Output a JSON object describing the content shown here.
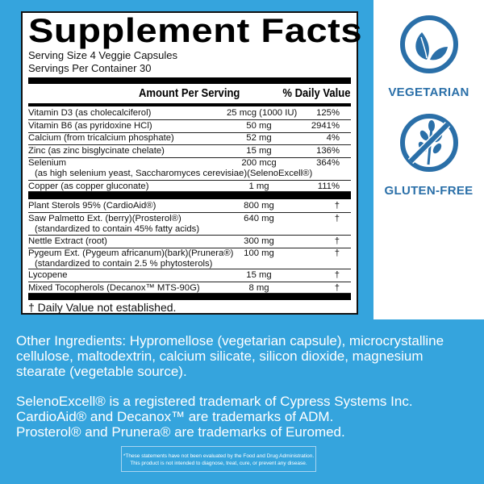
{
  "colors": {
    "background": "#35a4dd",
    "icon_blue": "#2a6fa8"
  },
  "facts": {
    "title": "Supplement Facts",
    "serving_size": "Serving Size  4 Veggie Capsules",
    "servings_per_container": "Servings Per Container  30",
    "header_amount": "Amount Per Serving",
    "header_dv": "% Daily Value",
    "rows": [
      {
        "name": "Vitamin D3 (as cholecalciferol)",
        "amount": "25 mcg (1000 IU)",
        "dv": "125%"
      },
      {
        "name": "Vitamin B6 (as pyridoxine HCl)",
        "amount": "50 mg",
        "dv": "2941%"
      },
      {
        "name": "Calcium (from tricalcium phosphate)",
        "amount": "52 mg",
        "dv": "4%"
      },
      {
        "name": "Zinc (as zinc bisglycinate chelate)",
        "amount": "15 mg",
        "dv": "136%"
      },
      {
        "name": "Selenium",
        "sub": "(as high selenium yeast, Saccharomyces cerevisiae)(SelenoExcell®)",
        "amount": "200 mcg",
        "dv": "364%"
      },
      {
        "name": "Copper (as copper gluconate)",
        "amount": "1 mg",
        "dv": "111%"
      }
    ],
    "rows2": [
      {
        "name": "Plant Sterols 95% (CardioAid®)",
        "amount": "800 mg",
        "dv": "†"
      },
      {
        "name": "Saw Palmetto Ext. (berry)(Prosterol®)",
        "sub": "(standardized to contain 45% fatty acids)",
        "amount": "640 mg",
        "dv": "†"
      },
      {
        "name": "Nettle Extract (root)",
        "amount": "300 mg",
        "dv": "†"
      },
      {
        "name": "Pygeum Ext. (Pygeum africanum)(bark)(Prunera®)",
        "sub": "(standardized to contain 2.5 % phytosterols)",
        "amount": "100 mg",
        "dv": "†"
      },
      {
        "name": "Lycopene",
        "amount": "15 mg",
        "dv": "†"
      },
      {
        "name": "Mixed Tocopherols (Decanox™ MTS-90G)",
        "amount": "8 mg",
        "dv": "†"
      }
    ],
    "footnote": "† Daily Value not established."
  },
  "badges": {
    "vegetarian": {
      "label": "VEGETARIAN",
      "icon": "leaves-icon"
    },
    "gluten_free": {
      "label": "GLUTEN-FREE",
      "icon": "no-wheat-icon"
    }
  },
  "other_ingredients": "Other Ingredients: Hypromellose (vegetarian capsule), microcrystalline cellulose, maltodextrin, calcium silicate, silicon dioxide, magnesium stearate (vegetable source).",
  "trademarks": [
    "SelenoExcell® is a registered trademark of Cypress Systems Inc.",
    "CardioAid® and Decanox™ are trademarks of ADM.",
    "Prosterol® and Prunera® are trademarks of Euromed."
  ],
  "disclaimer": [
    "*These statements have not been evaluated by the Food and Drug Administration.",
    "This product is not intended to diagnose, treat, cure, or prevent any disease."
  ]
}
